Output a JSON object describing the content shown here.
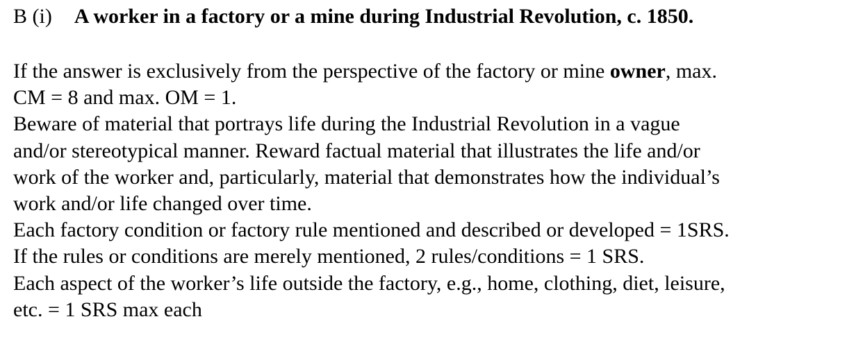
{
  "heading": {
    "number": "B  (i)",
    "title": "A worker in a factory or a mine during Industrial Revolution, c. 1850."
  },
  "lines": {
    "l1_pre": "If the answer is exclusively from the perspective of the factory or mine ",
    "l1_bold": "owner",
    "l1_post": ", max.",
    "l2": "CM = 8 and max. OM = 1.",
    "l3": "Beware of material that portrays life during the Industrial Revolution in a vague",
    "l4": "and/or stereotypical manner. Reward factual material that illustrates the life and/or",
    "l5": "work of the worker and, particularly, material that demonstrates how the individual’s",
    "l6": "work and/or life changed over time.",
    "l7": "Each factory condition or factory rule mentioned and described or developed = 1SRS.",
    "l8": "If the rules or conditions are merely mentioned, 2 rules/conditions = 1 SRS.",
    "l9": "Each aspect of the worker’s life outside the factory, e.g., home, clothing, diet, leisure,",
    "l10": "etc. = 1 SRS max each"
  }
}
